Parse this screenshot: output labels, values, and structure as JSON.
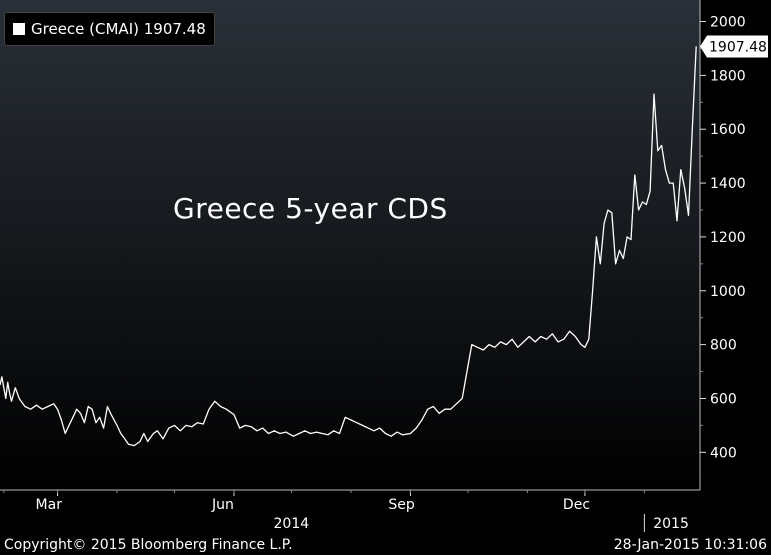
{
  "legend": {
    "label": "Greece (CMAI) 1907.48"
  },
  "annotation": "Greece 5-year CDS",
  "footer": {
    "copyright": "Copyright© 2015 Bloomberg Finance L.P.",
    "timestamp": "28-Jan-2015 10:31:06"
  },
  "colors": {
    "background_top": "#2a3038",
    "background_bottom": "#000000",
    "line": "#ffffff",
    "text": "#ffffff"
  },
  "chart_data": {
    "type": "line",
    "title": "",
    "xlabel": "",
    "ylabel": "",
    "ylim": [
      260,
      2080
    ],
    "xlim": [
      "2014-01-30",
      "2015-01-30"
    ],
    "yticks": [
      400,
      600,
      800,
      1000,
      1200,
      1400,
      1600,
      1800,
      2000
    ],
    "month_ticks": [
      {
        "label": "Mar",
        "date": "2014-03-01"
      },
      {
        "label": "Jun",
        "date": "2014-06-01"
      },
      {
        "label": "Sep",
        "date": "2014-09-01"
      },
      {
        "label": "Dec",
        "date": "2014-12-01"
      }
    ],
    "year_labels": [
      {
        "label": "2014",
        "date": "2014-07-01"
      },
      {
        "label": "2015",
        "date": "2015-01-15"
      }
    ],
    "year_separator": "2015-01-01",
    "last_value_label": "1907.48",
    "last_value": 1907.48,
    "grid": false,
    "legend_position": "top-left",
    "series": [
      {
        "name": "Greece (CMAI)",
        "points": [
          [
            "2014-01-30",
            650
          ],
          [
            "2014-01-31",
            680
          ],
          [
            "2014-02-01",
            640
          ],
          [
            "2014-02-02",
            600
          ],
          [
            "2014-02-03",
            660
          ],
          [
            "2014-02-04",
            620
          ],
          [
            "2014-02-05",
            590
          ],
          [
            "2014-02-07",
            640
          ],
          [
            "2014-02-09",
            600
          ],
          [
            "2014-02-12",
            570
          ],
          [
            "2014-02-15",
            560
          ],
          [
            "2014-02-18",
            575
          ],
          [
            "2014-02-21",
            560
          ],
          [
            "2014-02-24",
            570
          ],
          [
            "2014-02-27",
            580
          ],
          [
            "2014-03-01",
            560
          ],
          [
            "2014-03-03",
            520
          ],
          [
            "2014-03-05",
            470
          ],
          [
            "2014-03-07",
            500
          ],
          [
            "2014-03-09",
            530
          ],
          [
            "2014-03-11",
            560
          ],
          [
            "2014-03-13",
            545
          ],
          [
            "2014-03-15",
            510
          ],
          [
            "2014-03-17",
            570
          ],
          [
            "2014-03-19",
            560
          ],
          [
            "2014-03-21",
            510
          ],
          [
            "2014-03-23",
            530
          ],
          [
            "2014-03-25",
            490
          ],
          [
            "2014-03-27",
            570
          ],
          [
            "2014-03-29",
            540
          ],
          [
            "2014-04-01",
            500
          ],
          [
            "2014-04-03",
            470
          ],
          [
            "2014-04-05",
            450
          ],
          [
            "2014-04-07",
            430
          ],
          [
            "2014-04-10",
            425
          ],
          [
            "2014-04-13",
            440
          ],
          [
            "2014-04-15",
            470
          ],
          [
            "2014-04-17",
            440
          ],
          [
            "2014-04-20",
            470
          ],
          [
            "2014-04-22",
            480
          ],
          [
            "2014-04-25",
            450
          ],
          [
            "2014-04-28",
            490
          ],
          [
            "2014-05-01",
            500
          ],
          [
            "2014-05-04",
            480
          ],
          [
            "2014-05-07",
            500
          ],
          [
            "2014-05-10",
            495
          ],
          [
            "2014-05-13",
            510
          ],
          [
            "2014-05-16",
            505
          ],
          [
            "2014-05-19",
            560
          ],
          [
            "2014-05-22",
            590
          ],
          [
            "2014-05-25",
            570
          ],
          [
            "2014-05-28",
            560
          ],
          [
            "2014-06-01",
            540
          ],
          [
            "2014-06-04",
            490
          ],
          [
            "2014-06-07",
            500
          ],
          [
            "2014-06-10",
            495
          ],
          [
            "2014-06-13",
            480
          ],
          [
            "2014-06-16",
            490
          ],
          [
            "2014-06-19",
            470
          ],
          [
            "2014-06-22",
            480
          ],
          [
            "2014-06-25",
            470
          ],
          [
            "2014-06-28",
            475
          ],
          [
            "2014-07-02",
            460
          ],
          [
            "2014-07-05",
            470
          ],
          [
            "2014-07-08",
            480
          ],
          [
            "2014-07-11",
            470
          ],
          [
            "2014-07-14",
            475
          ],
          [
            "2014-07-17",
            470
          ],
          [
            "2014-07-20",
            465
          ],
          [
            "2014-07-23",
            480
          ],
          [
            "2014-07-26",
            470
          ],
          [
            "2014-07-29",
            530
          ],
          [
            "2014-08-01",
            520
          ],
          [
            "2014-08-04",
            510
          ],
          [
            "2014-08-07",
            500
          ],
          [
            "2014-08-10",
            490
          ],
          [
            "2014-08-13",
            480
          ],
          [
            "2014-08-16",
            490
          ],
          [
            "2014-08-19",
            470
          ],
          [
            "2014-08-22",
            460
          ],
          [
            "2014-08-25",
            475
          ],
          [
            "2014-08-28",
            465
          ],
          [
            "2014-09-01",
            470
          ],
          [
            "2014-09-04",
            490
          ],
          [
            "2014-09-07",
            520
          ],
          [
            "2014-09-10",
            560
          ],
          [
            "2014-09-13",
            570
          ],
          [
            "2014-09-16",
            545
          ],
          [
            "2014-09-19",
            560
          ],
          [
            "2014-09-22",
            560
          ],
          [
            "2014-09-25",
            580
          ],
          [
            "2014-09-28",
            600
          ],
          [
            "2014-10-01",
            720
          ],
          [
            "2014-10-03",
            800
          ],
          [
            "2014-10-06",
            790
          ],
          [
            "2014-10-09",
            780
          ],
          [
            "2014-10-12",
            800
          ],
          [
            "2014-10-15",
            790
          ],
          [
            "2014-10-18",
            810
          ],
          [
            "2014-10-21",
            800
          ],
          [
            "2014-10-24",
            820
          ],
          [
            "2014-10-27",
            790
          ],
          [
            "2014-10-30",
            810
          ],
          [
            "2014-11-02",
            830
          ],
          [
            "2014-11-05",
            810
          ],
          [
            "2014-11-08",
            830
          ],
          [
            "2014-11-11",
            820
          ],
          [
            "2014-11-14",
            840
          ],
          [
            "2014-11-17",
            810
          ],
          [
            "2014-11-20",
            820
          ],
          [
            "2014-11-23",
            850
          ],
          [
            "2014-11-26",
            830
          ],
          [
            "2014-11-29",
            800
          ],
          [
            "2014-12-01",
            790
          ],
          [
            "2014-12-03",
            820
          ],
          [
            "2014-12-05",
            1000
          ],
          [
            "2014-12-07",
            1200
          ],
          [
            "2014-12-09",
            1100
          ],
          [
            "2014-12-11",
            1250
          ],
          [
            "2014-12-13",
            1300
          ],
          [
            "2014-12-15",
            1290
          ],
          [
            "2014-12-17",
            1100
          ],
          [
            "2014-12-19",
            1150
          ],
          [
            "2014-12-21",
            1120
          ],
          [
            "2014-12-23",
            1200
          ],
          [
            "2014-12-25",
            1190
          ],
          [
            "2014-12-27",
            1430
          ],
          [
            "2014-12-29",
            1300
          ],
          [
            "2014-12-31",
            1330
          ],
          [
            "2015-01-02",
            1320
          ],
          [
            "2015-01-04",
            1370
          ],
          [
            "2015-01-06",
            1730
          ],
          [
            "2015-01-08",
            1520
          ],
          [
            "2015-01-10",
            1540
          ],
          [
            "2015-01-12",
            1450
          ],
          [
            "2015-01-14",
            1400
          ],
          [
            "2015-01-16",
            1400
          ],
          [
            "2015-01-18",
            1260
          ],
          [
            "2015-01-20",
            1450
          ],
          [
            "2015-01-22",
            1380
          ],
          [
            "2015-01-24",
            1280
          ],
          [
            "2015-01-26",
            1600
          ],
          [
            "2015-01-28",
            1907.48
          ]
        ]
      }
    ]
  }
}
